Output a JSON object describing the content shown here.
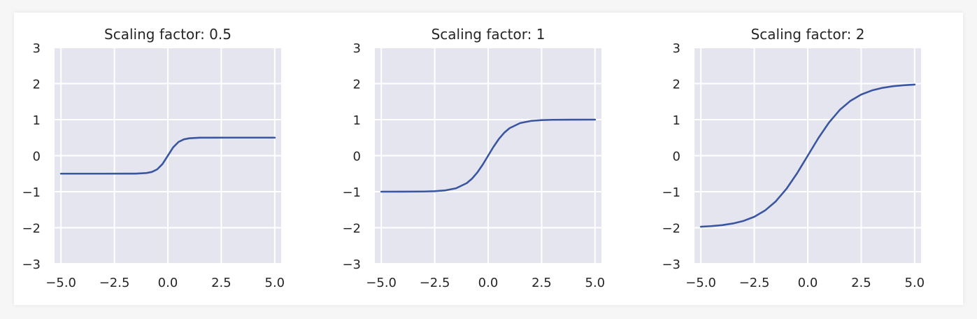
{
  "style": {
    "line_color": "#3b56a0",
    "axes_background": "#e5e5f0",
    "grid_color": "#ffffff",
    "grid": true
  },
  "chart_data": [
    {
      "type": "line",
      "title": "Scaling factor: 0.5",
      "xlabel": "",
      "ylabel": "",
      "xlim": [
        -5.3,
        5.3
      ],
      "ylim": [
        -3,
        3
      ],
      "xticks": [
        "−5.0",
        "−2.5",
        "0.0",
        "2.5",
        "5.0"
      ],
      "yticks": [
        "3",
        "2",
        "1",
        "0",
        "−1",
        "−2",
        "−3"
      ],
      "series": [
        {
          "x": [
            -5.0,
            -4.0,
            -3.0,
            -2.0,
            -1.5,
            -1.0,
            -0.75,
            -0.5,
            -0.25,
            0.0,
            0.25,
            0.5,
            0.75,
            1.0,
            1.5,
            2.0,
            3.0,
            4.0,
            5.0
          ],
          "y": [
            -0.5,
            -0.5,
            -0.5,
            -0.499,
            -0.498,
            -0.482,
            -0.453,
            -0.381,
            -0.231,
            0.0,
            0.231,
            0.381,
            0.453,
            0.482,
            0.498,
            0.499,
            0.5,
            0.5,
            0.5
          ]
        }
      ]
    },
    {
      "type": "line",
      "title": "Scaling factor: 1",
      "xlabel": "",
      "ylabel": "",
      "xlim": [
        -5.3,
        5.3
      ],
      "ylim": [
        -3,
        3
      ],
      "xticks": [
        "−5.0",
        "−2.5",
        "0.0",
        "2.5",
        "5.0"
      ],
      "yticks": [
        "3",
        "2",
        "1",
        "0",
        "−1",
        "−2",
        "−3"
      ],
      "series": [
        {
          "x": [
            -5.0,
            -4.0,
            -3.0,
            -2.5,
            -2.0,
            -1.5,
            -1.0,
            -0.75,
            -0.5,
            -0.25,
            0.0,
            0.25,
            0.5,
            0.75,
            1.0,
            1.5,
            2.0,
            2.5,
            3.0,
            4.0,
            5.0
          ],
          "y": [
            -1.0,
            -0.999,
            -0.995,
            -0.987,
            -0.964,
            -0.905,
            -0.762,
            -0.635,
            -0.462,
            -0.245,
            0.0,
            0.245,
            0.462,
            0.635,
            0.762,
            0.905,
            0.964,
            0.987,
            0.995,
            0.999,
            1.0
          ]
        }
      ]
    },
    {
      "type": "line",
      "title": "Scaling factor: 2",
      "xlabel": "",
      "ylabel": "",
      "xlim": [
        -5.3,
        5.3
      ],
      "ylim": [
        -3,
        3
      ],
      "xticks": [
        "−5.0",
        "−2.5",
        "0.0",
        "2.5",
        "5.0"
      ],
      "yticks": [
        "3",
        "2",
        "1",
        "0",
        "−1",
        "−2",
        "−3"
      ],
      "series": [
        {
          "x": [
            -5.0,
            -4.5,
            -4.0,
            -3.5,
            -3.0,
            -2.5,
            -2.0,
            -1.5,
            -1.0,
            -0.5,
            0.0,
            0.5,
            1.0,
            1.5,
            2.0,
            2.5,
            3.0,
            3.5,
            4.0,
            4.5,
            5.0
          ],
          "y": [
            -1.973,
            -1.956,
            -1.928,
            -1.883,
            -1.81,
            -1.697,
            -1.523,
            -1.271,
            -0.924,
            -0.49,
            0.0,
            0.49,
            0.924,
            1.271,
            1.523,
            1.697,
            1.81,
            1.883,
            1.928,
            1.956,
            1.973
          ]
        }
      ]
    }
  ]
}
